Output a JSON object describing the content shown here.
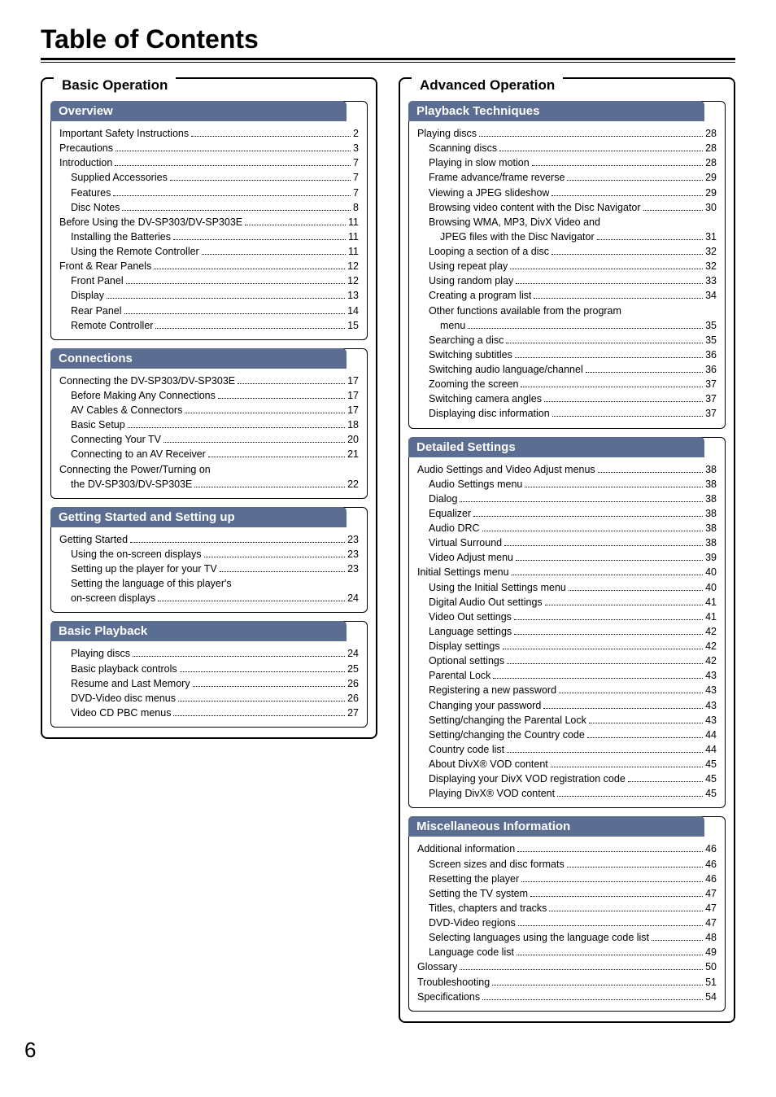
{
  "page_title": "Table of Contents",
  "page_number": "6",
  "colors": {
    "header_bg": "#5b6d91",
    "header_text": "#ffffff",
    "text": "#000000",
    "border": "#000000"
  },
  "left_main": {
    "title": "Basic Operation",
    "subs": [
      {
        "title": "Overview",
        "entries": [
          {
            "label": "Important Safety Instructions",
            "page": "2",
            "indent": 0
          },
          {
            "label": "Precautions",
            "page": "3",
            "indent": 0
          },
          {
            "label": "Introduction",
            "page": "7",
            "indent": 0
          },
          {
            "label": "Supplied Accessories",
            "page": "7",
            "indent": 1
          },
          {
            "label": "Features",
            "page": "7",
            "indent": 1
          },
          {
            "label": "Disc Notes",
            "page": "8",
            "indent": 1
          },
          {
            "label": "Before Using the DV-SP303/DV-SP303E",
            "page": "11",
            "indent": 0
          },
          {
            "label": "Installing the Batteries",
            "page": "11",
            "indent": 1
          },
          {
            "label": "Using the Remote Controller",
            "page": "11",
            "indent": 1
          },
          {
            "label": "Front & Rear Panels",
            "page": "12",
            "indent": 0
          },
          {
            "label": "Front Panel",
            "page": "12",
            "indent": 1
          },
          {
            "label": "Display",
            "page": "13",
            "indent": 1
          },
          {
            "label": "Rear Panel",
            "page": "14",
            "indent": 1
          },
          {
            "label": "Remote Controller",
            "page": "15",
            "indent": 1
          }
        ]
      },
      {
        "title": "Connections",
        "entries": [
          {
            "label": "Connecting the DV-SP303/DV-SP303E",
            "page": "17",
            "indent": 0
          },
          {
            "label": "Before Making Any Connections",
            "page": "17",
            "indent": 1
          },
          {
            "label": "AV Cables & Connectors",
            "page": "17",
            "indent": 1
          },
          {
            "label": "Basic Setup",
            "page": "18",
            "indent": 1
          },
          {
            "label": "Connecting Your TV",
            "page": "20",
            "indent": 1
          },
          {
            "label": "Connecting to an AV Receiver",
            "page": "21",
            "indent": 1
          },
          {
            "label": "Connecting the Power/Turning on",
            "page": "",
            "indent": 0
          },
          {
            "label": "the DV-SP303/DV-SP303E",
            "page": "22",
            "indent": 1
          }
        ]
      },
      {
        "title": "Getting Started and Setting up",
        "entries": [
          {
            "label": "Getting Started",
            "page": "23",
            "indent": 0
          },
          {
            "label": "Using the on-screen displays",
            "page": "23",
            "indent": 1
          },
          {
            "label": "Setting up the player for your TV",
            "page": "23",
            "indent": 1
          },
          {
            "label": "Setting the language of this player's",
            "page": "",
            "indent": 1
          },
          {
            "label": "on-screen displays",
            "page": "24",
            "indent": 1
          }
        ]
      },
      {
        "title": "Basic Playback",
        "entries": [
          {
            "label": "Playing discs",
            "page": "24",
            "indent": 1
          },
          {
            "label": "Basic playback controls",
            "page": "25",
            "indent": 1
          },
          {
            "label": "Resume and Last Memory",
            "page": "26",
            "indent": 1
          },
          {
            "label": "DVD-Video disc menus",
            "page": "26",
            "indent": 1
          },
          {
            "label": "Video CD PBC menus",
            "page": "27",
            "indent": 1
          }
        ]
      }
    ]
  },
  "right_main": {
    "title": "Advanced Operation",
    "subs": [
      {
        "title": "Playback Techniques",
        "entries": [
          {
            "label": "Playing discs",
            "page": "28",
            "indent": 0
          },
          {
            "label": "Scanning discs",
            "page": "28",
            "indent": 1
          },
          {
            "label": "Playing in slow motion",
            "page": "28",
            "indent": 1
          },
          {
            "label": "Frame advance/frame reverse",
            "page": "29",
            "indent": 1
          },
          {
            "label": "Viewing a JPEG slideshow",
            "page": "29",
            "indent": 1
          },
          {
            "label": "Browsing video content with the Disc Navigator",
            "page": "30",
            "indent": 1
          },
          {
            "label": "Browsing WMA, MP3, DivX Video and",
            "page": "",
            "indent": 1
          },
          {
            "label": "JPEG files with the Disc Navigator",
            "page": "31",
            "indent": 2
          },
          {
            "label": "Looping a section of a disc",
            "page": "32",
            "indent": 1
          },
          {
            "label": "Using repeat play",
            "page": "32",
            "indent": 1
          },
          {
            "label": "Using random play",
            "page": "33",
            "indent": 1
          },
          {
            "label": "Creating a program list",
            "page": "34",
            "indent": 1
          },
          {
            "label": "Other functions available from the program",
            "page": "",
            "indent": 1
          },
          {
            "label": "menu",
            "page": "35",
            "indent": 2
          },
          {
            "label": "Searching a disc",
            "page": "35",
            "indent": 1
          },
          {
            "label": "Switching subtitles",
            "page": "36",
            "indent": 1
          },
          {
            "label": "Switching audio language/channel",
            "page": "36",
            "indent": 1
          },
          {
            "label": "Zooming the screen",
            "page": "37",
            "indent": 1
          },
          {
            "label": "Switching camera angles",
            "page": "37",
            "indent": 1
          },
          {
            "label": "Displaying disc information",
            "page": "37",
            "indent": 1
          }
        ]
      },
      {
        "title": "Detailed Settings",
        "entries": [
          {
            "label": "Audio Settings and Video Adjust menus",
            "page": "38",
            "indent": 0
          },
          {
            "label": "Audio Settings menu",
            "page": "38",
            "indent": 1
          },
          {
            "label": "Dialog",
            "page": "38",
            "indent": 1
          },
          {
            "label": "Equalizer",
            "page": "38",
            "indent": 1
          },
          {
            "label": "Audio DRC",
            "page": "38",
            "indent": 1
          },
          {
            "label": "Virtual Surround",
            "page": "38",
            "indent": 1
          },
          {
            "label": "Video Adjust menu",
            "page": "39",
            "indent": 1
          },
          {
            "label": "Initial Settings menu",
            "page": "40",
            "indent": 0
          },
          {
            "label": "Using the Initial Settings menu",
            "page": "40",
            "indent": 1
          },
          {
            "label": "Digital Audio Out settings",
            "page": "41",
            "indent": 1
          },
          {
            "label": "Video Out settings",
            "page": "41",
            "indent": 1
          },
          {
            "label": "Language settings",
            "page": "42",
            "indent": 1
          },
          {
            "label": "Display settings",
            "page": "42",
            "indent": 1
          },
          {
            "label": "Optional settings",
            "page": "42",
            "indent": 1
          },
          {
            "label": "Parental Lock",
            "page": "43",
            "indent": 1
          },
          {
            "label": "Registering a new password",
            "page": "43",
            "indent": 1
          },
          {
            "label": "Changing your password",
            "page": "43",
            "indent": 1
          },
          {
            "label": "Setting/changing the Parental Lock",
            "page": "43",
            "indent": 1
          },
          {
            "label": "Setting/changing the Country code",
            "page": "44",
            "indent": 1
          },
          {
            "label": "Country code list",
            "page": "44",
            "indent": 1
          },
          {
            "label": "About DivX® VOD content",
            "page": "45",
            "indent": 1
          },
          {
            "label": "Displaying your DivX VOD registration code",
            "page": "45",
            "indent": 1
          },
          {
            "label": "Playing DivX® VOD content",
            "page": "45",
            "indent": 1
          }
        ]
      },
      {
        "title": "Miscellaneous Information",
        "entries": [
          {
            "label": "Additional information",
            "page": "46",
            "indent": 0
          },
          {
            "label": "Screen sizes and disc formats",
            "page": "46",
            "indent": 1
          },
          {
            "label": "Resetting the player",
            "page": "46",
            "indent": 1
          },
          {
            "label": "Setting the TV system",
            "page": "47",
            "indent": 1
          },
          {
            "label": "Titles, chapters and tracks",
            "page": "47",
            "indent": 1
          },
          {
            "label": "DVD-Video regions",
            "page": "47",
            "indent": 1
          },
          {
            "label": "Selecting languages using the language code list",
            "page": "48",
            "indent": 1
          },
          {
            "label": "Language code list",
            "page": "49",
            "indent": 1
          },
          {
            "label": "Glossary",
            "page": "50",
            "indent": 0
          },
          {
            "label": "Troubleshooting",
            "page": "51",
            "indent": 0
          },
          {
            "label": "Specifications",
            "page": "54",
            "indent": 0
          }
        ]
      }
    ]
  }
}
